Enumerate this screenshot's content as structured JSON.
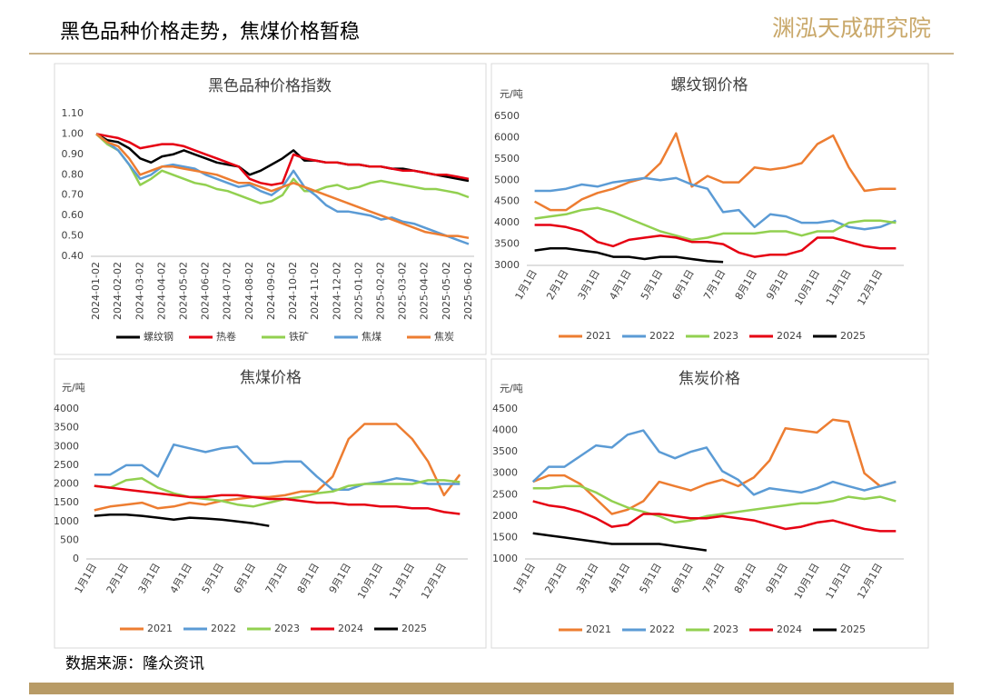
{
  "header": {
    "title": "黑色品种价格走势，焦煤价格暂稳",
    "logo": "渊泓天成研究院"
  },
  "footer": {
    "source": "数据来源：隆众资讯"
  },
  "chart_data": [
    {
      "type": "line",
      "title": "黑色品种价格指数",
      "legend": "bottom",
      "grid": false,
      "categories": [
        "2024-01-02",
        null,
        "2024-02-02",
        null,
        "2024-03-02",
        null,
        "2024-04-02",
        null,
        "2024-05-02",
        null,
        "2024-06-02",
        null,
        "2024-07-02",
        null,
        "2024-08-02",
        null,
        "2024-09-02",
        null,
        "2024-10-02",
        null,
        "2024-11-02",
        null,
        "2024-12-02",
        null,
        "2025-01-02",
        null,
        "2025-02-02",
        null,
        "2025-03-02",
        null,
        "2025-04-02",
        null,
        "2025-05-02",
        null,
        "2025-06-02"
      ],
      "ylim": [
        0.4,
        1.1
      ],
      "yticks": [
        {
          "value": 0.4,
          "label": "0.40"
        },
        {
          "value": 0.5,
          "label": "0.50"
        },
        {
          "value": 0.6,
          "label": "0.60"
        },
        {
          "value": 0.7,
          "label": "0.70"
        },
        {
          "value": 0.8,
          "label": "0.80"
        },
        {
          "value": 0.9,
          "label": "0.90"
        },
        {
          "value": 1.0,
          "label": "1.00"
        },
        {
          "value": 1.1,
          "label": "1.10"
        }
      ],
      "series": [
        {
          "name": "螺纹钢",
          "color": "#000000",
          "values": [
            1.0,
            0.97,
            0.96,
            0.93,
            0.88,
            0.86,
            0.89,
            0.9,
            0.92,
            0.9,
            0.88,
            0.86,
            0.85,
            0.84,
            0.8,
            0.82,
            0.85,
            0.88,
            0.92,
            0.87,
            0.87,
            0.86,
            0.86,
            0.85,
            0.85,
            0.84,
            0.84,
            0.83,
            0.83,
            0.82,
            0.81,
            0.8,
            0.79,
            0.78,
            0.77
          ]
        },
        {
          "name": "热卷",
          "color": "#e60012",
          "values": [
            1.0,
            0.99,
            0.98,
            0.96,
            0.93,
            0.94,
            0.95,
            0.95,
            0.94,
            0.92,
            0.9,
            0.88,
            0.86,
            0.84,
            0.78,
            0.76,
            0.75,
            0.76,
            0.9,
            0.88,
            0.87,
            0.86,
            0.86,
            0.85,
            0.85,
            0.84,
            0.84,
            0.83,
            0.82,
            0.82,
            0.81,
            0.8,
            0.8,
            0.79,
            0.78
          ]
        },
        {
          "name": "铁矿",
          "color": "#92d050",
          "values": [
            1.0,
            0.95,
            0.92,
            0.85,
            0.75,
            0.78,
            0.82,
            0.8,
            0.78,
            0.76,
            0.75,
            0.73,
            0.72,
            0.7,
            0.68,
            0.66,
            0.67,
            0.7,
            0.78,
            0.72,
            0.72,
            0.74,
            0.75,
            0.73,
            0.74,
            0.76,
            0.77,
            0.76,
            0.75,
            0.74,
            0.73,
            0.73,
            0.72,
            0.71,
            0.69
          ]
        },
        {
          "name": "焦煤",
          "color": "#5b9bd5",
          "values": [
            1.0,
            0.96,
            0.92,
            0.85,
            0.78,
            0.8,
            0.84,
            0.85,
            0.84,
            0.83,
            0.8,
            0.78,
            0.76,
            0.74,
            0.75,
            0.72,
            0.7,
            0.74,
            0.82,
            0.74,
            0.7,
            0.65,
            0.62,
            0.62,
            0.61,
            0.6,
            0.58,
            0.59,
            0.57,
            0.56,
            0.54,
            0.52,
            0.5,
            0.48,
            0.46
          ]
        },
        {
          "name": "焦炭",
          "color": "#ed7d31",
          "values": [
            1.0,
            0.96,
            0.94,
            0.88,
            0.8,
            0.82,
            0.84,
            0.84,
            0.83,
            0.82,
            0.81,
            0.8,
            0.78,
            0.76,
            0.76,
            0.74,
            0.72,
            0.74,
            0.76,
            0.74,
            0.72,
            0.7,
            0.68,
            0.66,
            0.64,
            0.62,
            0.6,
            0.58,
            0.56,
            0.54,
            0.52,
            0.51,
            0.5,
            0.5,
            0.49
          ]
        }
      ]
    },
    {
      "type": "line",
      "title": "螺纹钢价格",
      "ylabel": "元/吨",
      "legend": "bottom",
      "grid": false,
      "categories": [
        "1月1日",
        null,
        "2月1日",
        null,
        "3月1日",
        null,
        "4月1日",
        null,
        "5月1日",
        null,
        "6月1日",
        null,
        "7月1日",
        null,
        "8月1日",
        null,
        "9月1日",
        null,
        "10月1日",
        null,
        "11月1日",
        null,
        "12月1日",
        null
      ],
      "ylim": [
        3000,
        6500
      ],
      "yticks": [
        3000,
        3500,
        4000,
        4500,
        5000,
        5500,
        6000,
        6500
      ],
      "series": [
        {
          "name": "2021",
          "color": "#ed7d31",
          "values": [
            4500,
            4300,
            4300,
            4550,
            4700,
            4800,
            4950,
            5050,
            5400,
            6100,
            4850,
            5100,
            4950,
            4950,
            5300,
            5250,
            5300,
            5400,
            5850,
            6050,
            5300,
            4750,
            4800,
            4800
          ]
        },
        {
          "name": "2022",
          "color": "#5b9bd5",
          "values": [
            4750,
            4750,
            4800,
            4900,
            4850,
            4950,
            5000,
            5050,
            5000,
            5050,
            4900,
            4800,
            4250,
            4300,
            3900,
            4200,
            4150,
            4000,
            4000,
            4050,
            3900,
            3850,
            3900,
            4050
          ]
        },
        {
          "name": "2023",
          "color": "#92d050",
          "values": [
            4100,
            4150,
            4200,
            4300,
            4350,
            4250,
            4100,
            3950,
            3800,
            3700,
            3600,
            3650,
            3750,
            3750,
            3750,
            3800,
            3800,
            3700,
            3800,
            3800,
            4000,
            4050,
            4050,
            4000
          ]
        },
        {
          "name": "2024",
          "color": "#e60012",
          "values": [
            3950,
            3950,
            3900,
            3800,
            3550,
            3450,
            3600,
            3650,
            3700,
            3650,
            3550,
            3550,
            3500,
            3300,
            3200,
            3250,
            3250,
            3350,
            3650,
            3650,
            3550,
            3450,
            3400,
            3400
          ]
        },
        {
          "name": "2025",
          "color": "#000000",
          "values": [
            3350,
            3400,
            3400,
            3350,
            3300,
            3200,
            3200,
            3150,
            3200,
            3200,
            3150,
            3100,
            3080,
            null,
            null,
            null,
            null,
            null,
            null,
            null,
            null,
            null,
            null,
            null
          ]
        }
      ]
    },
    {
      "type": "line",
      "title": "焦煤价格",
      "ylabel": "元/吨",
      "legend": "bottom",
      "grid": false,
      "categories": [
        "1月1日",
        null,
        "2月1日",
        null,
        "3月1日",
        null,
        "4月1日",
        null,
        "5月1日",
        null,
        "6月1日",
        null,
        "7月1日",
        null,
        "8月1日",
        null,
        "9月1日",
        null,
        "10月1日",
        null,
        "11月1日",
        null,
        "12月1日",
        null
      ],
      "ylim": [
        0,
        4000
      ],
      "yticks": [
        0,
        500,
        1000,
        1500,
        2000,
        2500,
        3000,
        3500,
        4000
      ],
      "series": [
        {
          "name": "2021",
          "color": "#ed7d31",
          "values": [
            1300,
            1400,
            1450,
            1500,
            1350,
            1400,
            1500,
            1450,
            1550,
            1600,
            1650,
            1650,
            1700,
            1800,
            1800,
            2200,
            3200,
            3600,
            3600,
            3600,
            3200,
            2600,
            1700,
            2250
          ]
        },
        {
          "name": "2022",
          "color": "#5b9bd5",
          "values": [
            2250,
            2250,
            2500,
            2500,
            2200,
            3050,
            2950,
            2850,
            2950,
            3000,
            2550,
            2550,
            2600,
            2600,
            2200,
            1850,
            1850,
            2000,
            2050,
            2150,
            2100,
            2000,
            2000,
            2000
          ]
        },
        {
          "name": "2023",
          "color": "#92d050",
          "values": [
            1950,
            1900,
            2100,
            2150,
            1900,
            1750,
            1650,
            1600,
            1550,
            1450,
            1400,
            1500,
            1600,
            1650,
            1750,
            1800,
            1950,
            2000,
            2000,
            2000,
            2000,
            2100,
            2100,
            2050
          ]
        },
        {
          "name": "2024",
          "color": "#e60012",
          "values": [
            1950,
            1900,
            1850,
            1800,
            1750,
            1700,
            1650,
            1650,
            1700,
            1700,
            1650,
            1600,
            1600,
            1550,
            1500,
            1500,
            1450,
            1450,
            1400,
            1400,
            1350,
            1350,
            1250,
            1200
          ]
        },
        {
          "name": "2025",
          "color": "#000000",
          "values": [
            1150,
            1180,
            1180,
            1150,
            1100,
            1050,
            1100,
            1080,
            1050,
            1000,
            950,
            880,
            null,
            null,
            null,
            null,
            null,
            null,
            null,
            null,
            null,
            null,
            null,
            null
          ]
        }
      ]
    },
    {
      "type": "line",
      "title": "焦炭价格",
      "ylabel": "元/吨",
      "legend": "bottom",
      "grid": false,
      "categories": [
        "1月1日",
        null,
        "2月1日",
        null,
        "3月1日",
        null,
        "4月1日",
        null,
        "5月1日",
        null,
        "6月1日",
        null,
        "7月1日",
        null,
        "8月1日",
        null,
        "9月1日",
        null,
        "10月1日",
        null,
        "11月1日",
        null,
        "12月1日",
        null
      ],
      "ylim": [
        1000,
        4500
      ],
      "yticks": [
        1000,
        1500,
        2000,
        2500,
        3000,
        3500,
        4000,
        4500
      ],
      "series": [
        {
          "name": "2021",
          "color": "#ed7d31",
          "values": [
            2800,
            2950,
            2950,
            2750,
            2400,
            2050,
            2150,
            2350,
            2800,
            2700,
            2600,
            2750,
            2850,
            2700,
            2900,
            3300,
            4050,
            4000,
            3950,
            4250,
            4200,
            3000,
            2700,
            2800
          ]
        },
        {
          "name": "2022",
          "color": "#5b9bd5",
          "values": [
            2800,
            3150,
            3150,
            3400,
            3650,
            3600,
            3900,
            4000,
            3500,
            3350,
            3500,
            3600,
            3050,
            2850,
            2500,
            2650,
            2600,
            2550,
            2650,
            2800,
            2700,
            2600,
            2700,
            2800
          ]
        },
        {
          "name": "2023",
          "color": "#92d050",
          "values": [
            2650,
            2650,
            2700,
            2700,
            2550,
            2350,
            2200,
            2100,
            2000,
            1850,
            1900,
            2000,
            2050,
            2100,
            2150,
            2200,
            2250,
            2300,
            2300,
            2350,
            2450,
            2400,
            2450,
            2350
          ]
        },
        {
          "name": "2024",
          "color": "#e60012",
          "values": [
            2350,
            2250,
            2200,
            2100,
            1950,
            1750,
            1800,
            2050,
            2050,
            2000,
            1950,
            1950,
            2000,
            1950,
            1900,
            1800,
            1700,
            1750,
            1850,
            1900,
            1800,
            1700,
            1650,
            1650
          ]
        },
        {
          "name": "2025",
          "color": "#000000",
          "values": [
            1600,
            1550,
            1500,
            1450,
            1400,
            1350,
            1350,
            1350,
            1350,
            1300,
            1250,
            1200,
            null,
            null,
            null,
            null,
            null,
            null,
            null,
            null,
            null,
            null,
            null,
            null
          ]
        }
      ]
    }
  ]
}
